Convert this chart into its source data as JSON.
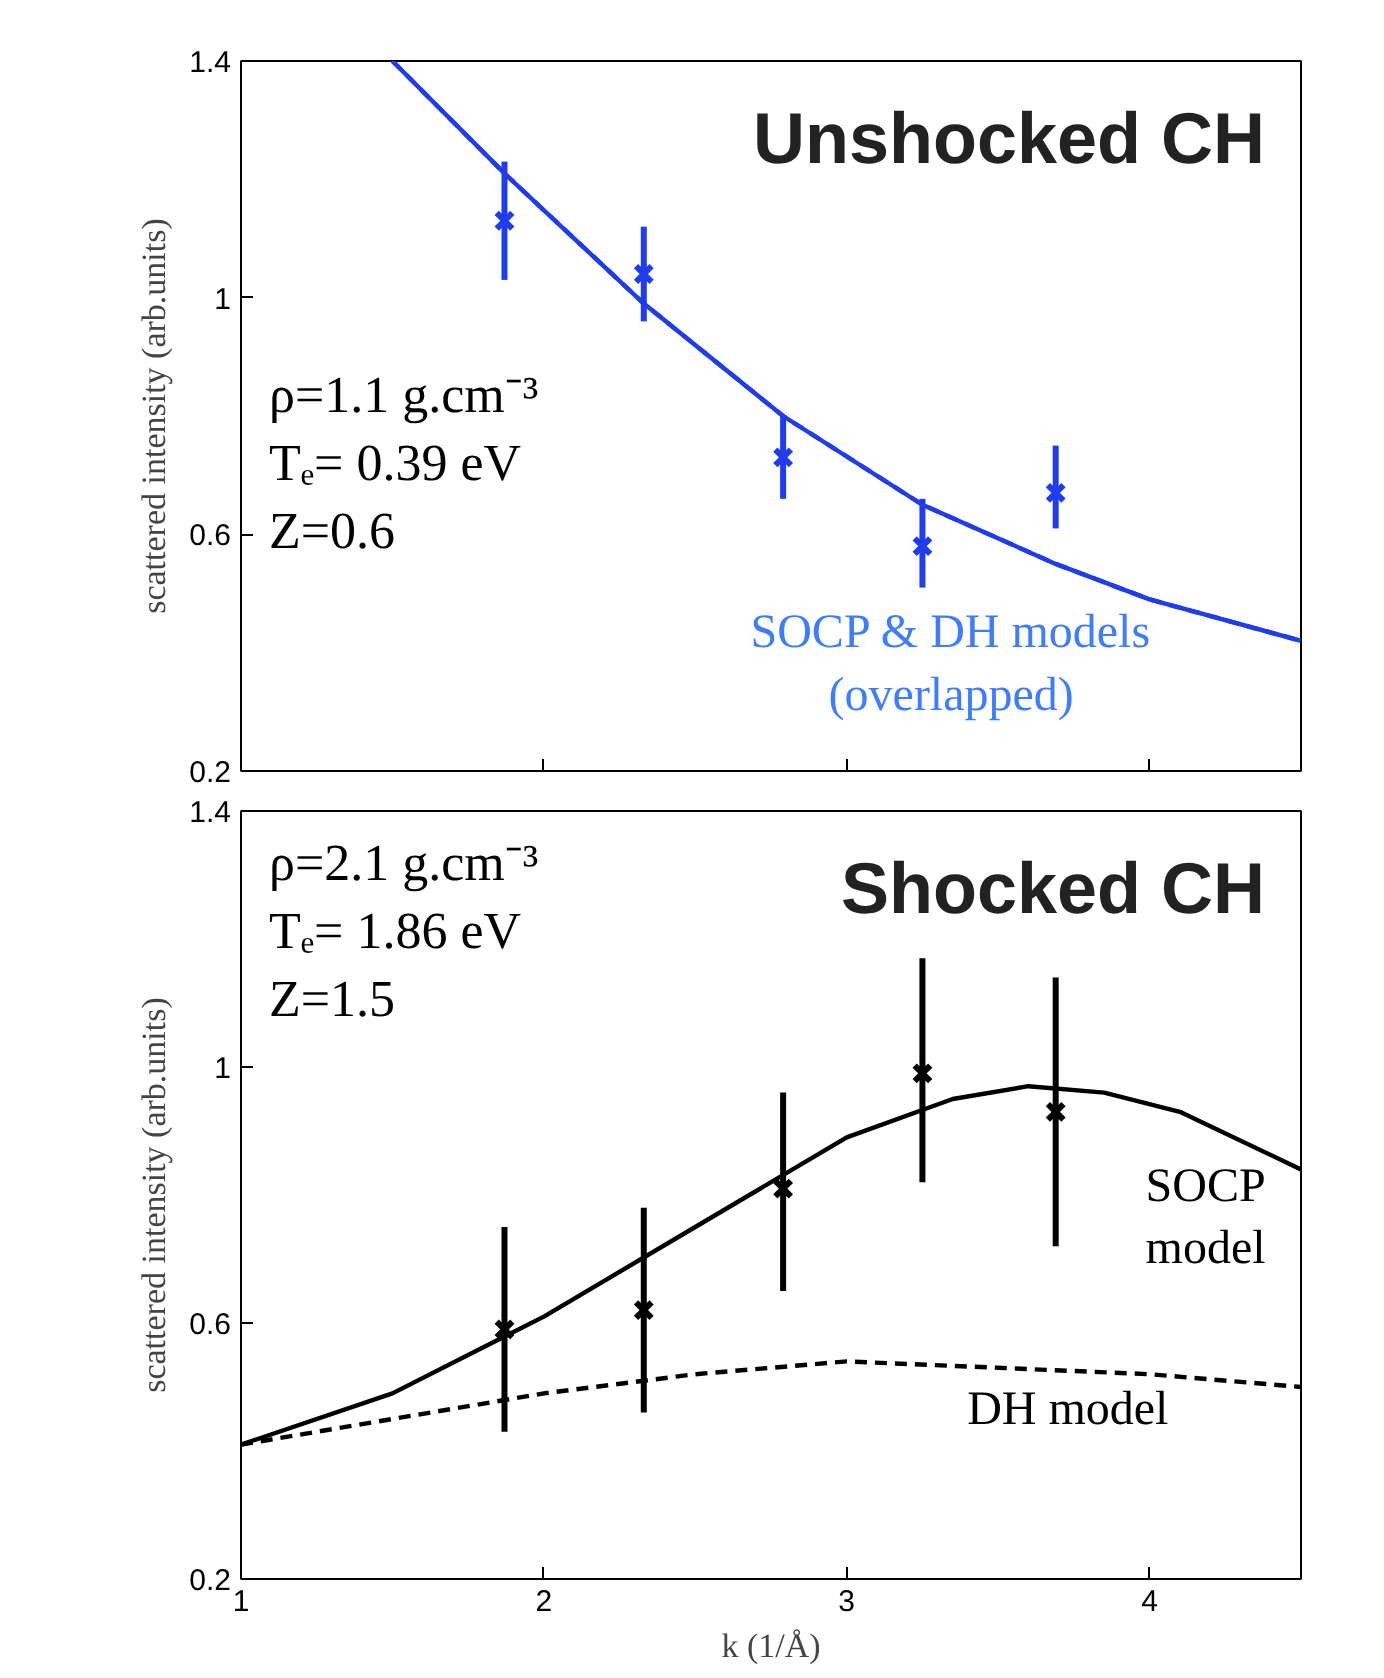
{
  "chart_data": [
    {
      "type": "line",
      "title": "Unshocked CH",
      "ylabel": "scattered intensity (arb.units)",
      "annotations": [
        "ρ=1.1 g.cm⁻³",
        "Tₑ= 0.39 eV",
        "Z=0.6",
        "SOCP & DH models\n(overlapped)"
      ],
      "series": [
        {
          "line_style": "solid",
          "color": "#1f3cf0",
          "x": [
            1.5,
            1.87,
            2.33,
            2.79,
            3.25,
            3.69,
            4.0,
            4.5
          ],
          "values": [
            1.4,
            1.21,
            0.99,
            0.8,
            0.65,
            0.55,
            0.49,
            0.42
          ]
        },
        {
          "line_style": "dashed",
          "color": "#1f3cf0",
          "x": [
            1.5,
            1.87,
            2.33,
            2.79,
            3.25,
            3.69,
            4.0,
            4.5
          ],
          "values": [
            1.4,
            1.21,
            0.99,
            0.8,
            0.65,
            0.55,
            0.49,
            0.42
          ]
        },
        {
          "type": "scatter",
          "marker": "cross",
          "color": "#1f3cf0",
          "x": [
            1.87,
            2.33,
            2.79,
            3.25,
            3.69
          ],
          "values": [
            1.13,
            1.04,
            0.73,
            0.58,
            0.67
          ],
          "errors": [
            [
              1.03,
              1.23
            ],
            [
              0.96,
              1.12
            ],
            [
              0.66,
              0.8
            ],
            [
              0.51,
              0.66
            ],
            [
              0.61,
              0.75
            ]
          ]
        }
      ],
      "xlim": [
        1,
        4.5
      ],
      "ylim": [
        0.2,
        1.4
      ],
      "xticks": [
        1,
        2,
        3,
        4
      ],
      "yticks": [
        0.2,
        0.6,
        1,
        1.4
      ],
      "tick_labels": "y",
      "grid": false
    },
    {
      "type": "line",
      "title": "Shocked CH",
      "xlabel": "k (1/Å)",
      "ylabel": "scattered intensity (arb.units)",
      "annotations": [
        "ρ=2.1 g.cm⁻³",
        "Tₑ= 1.86 eV",
        "Z=1.5",
        "SOCP\nmodel",
        "DH model"
      ],
      "series": [
        {
          "line_style": "solid",
          "color": "#000000",
          "x": [
            1,
            1.5,
            2,
            2.5,
            3,
            3.35,
            3.6,
            3.85,
            4.1,
            4.5
          ],
          "values": [
            0.41,
            0.49,
            0.61,
            0.75,
            0.89,
            0.95,
            0.97,
            0.96,
            0.93,
            0.84
          ]
        },
        {
          "line_style": "dashed",
          "color": "#000000",
          "x": [
            1,
            1.5,
            2,
            2.5,
            3,
            3.5,
            4,
            4.5
          ],
          "values": [
            0.41,
            0.45,
            0.49,
            0.52,
            0.54,
            0.53,
            0.52,
            0.5
          ]
        },
        {
          "type": "scatter",
          "marker": "cross",
          "color": "#000000",
          "x": [
            1.87,
            2.33,
            2.79,
            3.25,
            3.69
          ],
          "values": [
            0.59,
            0.62,
            0.81,
            0.99,
            0.93
          ],
          "errors": [
            [
              0.43,
              0.75
            ],
            [
              0.46,
              0.78
            ],
            [
              0.65,
              0.96
            ],
            [
              0.82,
              1.17
            ],
            [
              0.72,
              1.14
            ]
          ]
        }
      ],
      "xlim": [
        1,
        4.5
      ],
      "ylim": [
        0.2,
        1.4
      ],
      "xticks": [
        1,
        2,
        3,
        4
      ],
      "yticks": [
        0.2,
        0.6,
        1,
        1.4
      ],
      "grid": false
    }
  ]
}
